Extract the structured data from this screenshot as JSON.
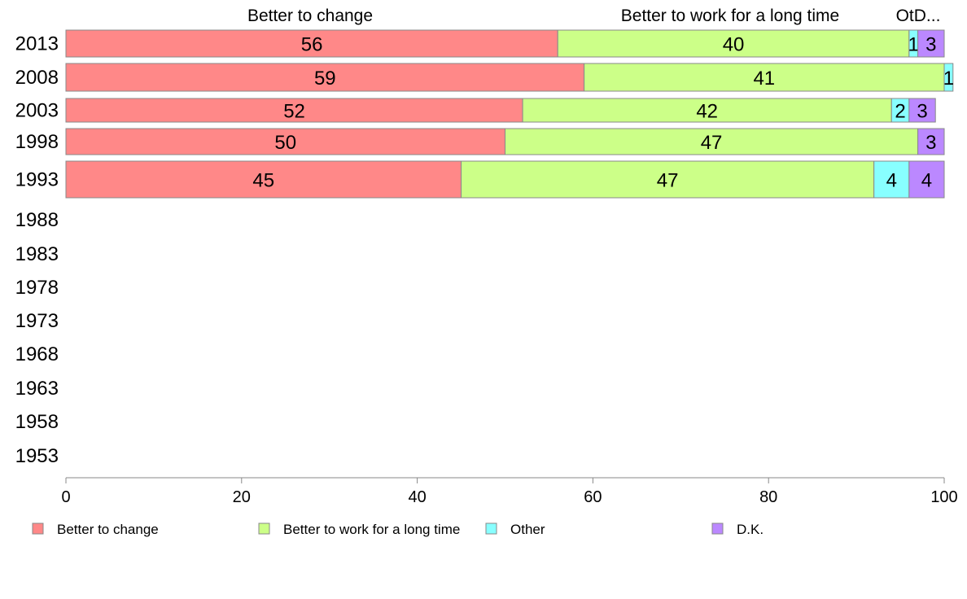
{
  "chart_data": {
    "type": "bar",
    "orientation": "horizontal",
    "stacked": true,
    "categories": [
      "2013",
      "2008",
      "2003",
      "1998",
      "1993",
      "1988",
      "1983",
      "1978",
      "1973",
      "1968",
      "1963",
      "1958",
      "1953"
    ],
    "series": [
      {
        "name": "Better to change",
        "values": [
          56,
          59,
          52,
          50,
          45,
          null,
          null,
          null,
          null,
          null,
          null,
          null,
          null
        ]
      },
      {
        "name": "Better to work for a long time",
        "values": [
          40,
          41,
          42,
          47,
          47,
          null,
          null,
          null,
          null,
          null,
          null,
          null,
          null
        ]
      },
      {
        "name": "Other",
        "values": [
          1,
          1,
          2,
          0,
          4,
          null,
          null,
          null,
          null,
          null,
          null,
          null,
          null
        ]
      },
      {
        "name": "D.K.",
        "values": [
          3,
          0,
          3,
          3,
          4,
          null,
          null,
          null,
          null,
          null,
          null,
          null,
          null
        ]
      }
    ],
    "segment_labels": [
      [
        "56",
        "40",
        "1",
        "3"
      ],
      [
        "59",
        "41",
        "1",
        ""
      ],
      [
        "52",
        "42",
        "2",
        "3"
      ],
      [
        "50",
        "47",
        "",
        "3"
      ],
      [
        "45",
        "47",
        "4",
        "4"
      ]
    ],
    "top_labels": [
      "Better to change",
      "Better to work for a long time",
      "OtD..."
    ],
    "xlim": [
      0,
      100
    ],
    "xticks": [
      "0",
      "20",
      "40",
      "60",
      "80",
      "100"
    ],
    "grid": false,
    "legend_position": "bottom",
    "colors": [
      "#ff8888",
      "#ccff88",
      "#88ffff",
      "#bb88ff"
    ]
  }
}
